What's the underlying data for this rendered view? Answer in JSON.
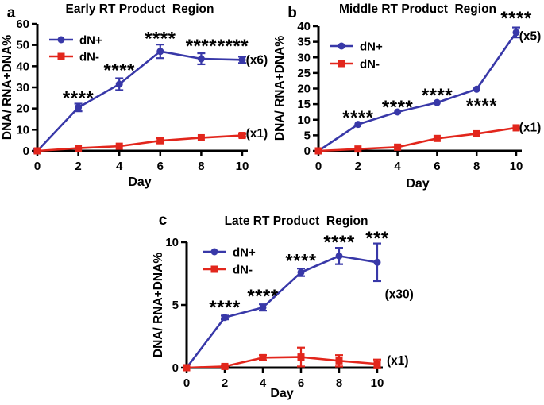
{
  "figure": {
    "background": "#ffffff",
    "colors": {
      "dn_plus": "#3838A8",
      "dn_minus": "#E2261C",
      "axis": "#000000",
      "text": "#000000"
    }
  },
  "chart_data": [
    {
      "panel_letter": "a",
      "type": "line",
      "title": "Early RT Product  Region",
      "xlabel": "Day",
      "ylabel": "DNA/ RNA+DNA%",
      "x": [
        0,
        2,
        4,
        6,
        8,
        10
      ],
      "xlim": [
        0,
        10
      ],
      "ylim": [
        0,
        60
      ],
      "xticks": [
        0,
        2,
        4,
        6,
        8,
        10
      ],
      "yticks": [
        0,
        10,
        20,
        30,
        40,
        50,
        60
      ],
      "grid": false,
      "legend_position": "top-left",
      "series": [
        {
          "name": "dN+",
          "marker": "circle",
          "color": "#3838A8",
          "values": [
            0,
            20.5,
            31.5,
            47,
            43.5,
            43
          ],
          "errors": [
            0.8,
            1.8,
            2.8,
            3.2,
            2.6,
            1.5
          ],
          "scale_label": "(x6)",
          "scale_label_pos": [
            10.18,
            41
          ]
        },
        {
          "name": "dN-",
          "marker": "square",
          "color": "#E2261C",
          "values": [
            0,
            1.3,
            2.2,
            4.8,
            6.2,
            7.3
          ],
          "errors": [
            0,
            0,
            0,
            1.2,
            0,
            0.7
          ],
          "scale_label": "(x1)",
          "scale_label_pos": [
            10.18,
            6.4
          ]
        }
      ],
      "annotations": [
        {
          "x": 2,
          "y": 22,
          "text": "****"
        },
        {
          "x": 4,
          "y": 35,
          "text": "****"
        },
        {
          "x": 6,
          "y": 50,
          "text": "****"
        },
        {
          "x": 8,
          "y": 46.5,
          "text": "****"
        },
        {
          "x": 9.55,
          "y": 46.5,
          "text": "****"
        }
      ]
    },
    {
      "panel_letter": "b",
      "type": "line",
      "title": "Middle RT Product  Region",
      "xlabel": "Day",
      "ylabel": "DNA/ RNA+DNA%",
      "x": [
        0,
        2,
        4,
        6,
        8,
        10
      ],
      "xlim": [
        0,
        10
      ],
      "ylim": [
        0,
        40
      ],
      "xticks": [
        0,
        2,
        4,
        6,
        8,
        10
      ],
      "yticks": [
        0,
        5,
        10,
        15,
        20,
        25,
        30,
        35,
        40
      ],
      "grid": false,
      "legend_position": "top-left",
      "series": [
        {
          "name": "dN+",
          "marker": "circle",
          "color": "#3838A8",
          "values": [
            0,
            8.5,
            12.5,
            15.5,
            19.8,
            38
          ],
          "errors": [
            0,
            0,
            0,
            0,
            0,
            1.6
          ],
          "scale_label": "(x5)",
          "scale_label_pos": [
            10.15,
            35.5
          ]
        },
        {
          "name": "dN-",
          "marker": "square",
          "color": "#E2261C",
          "values": [
            0,
            0.6,
            1.2,
            4,
            5.5,
            7.4
          ],
          "errors": [
            0,
            0,
            0,
            0,
            0,
            0
          ],
          "scale_label": "(x1)",
          "scale_label_pos": [
            10.15,
            6.2
          ]
        }
      ],
      "annotations": [
        {
          "x": 2,
          "y": 8.7,
          "text": "****"
        },
        {
          "x": 4,
          "y": 12,
          "text": "****"
        },
        {
          "x": 6,
          "y": 15.8,
          "text": "****"
        },
        {
          "x": 8.25,
          "y": 12.5,
          "text": "****"
        },
        {
          "x": 10,
          "y": 40.5,
          "text": "****"
        }
      ]
    },
    {
      "panel_letter": "c",
      "type": "line",
      "title": "Late RT Product  Region",
      "xlabel": "Day",
      "ylabel": "DNA/ RNA+DNA%",
      "x": [
        0,
        2,
        4,
        6,
        8,
        10
      ],
      "xlim": [
        0,
        10
      ],
      "ylim": [
        0,
        10
      ],
      "xticks": [
        0,
        2,
        4,
        6,
        8,
        10
      ],
      "yticks": [
        0,
        5,
        10
      ],
      "grid": false,
      "legend_position": "top-left",
      "series": [
        {
          "name": "dN+",
          "marker": "circle",
          "color": "#3838A8",
          "values": [
            0,
            4,
            4.8,
            7.6,
            8.9,
            8.4
          ],
          "errors": [
            0,
            0.15,
            0.25,
            0.3,
            0.65,
            1.5
          ],
          "scale_label": "(x30)",
          "scale_label_pos": [
            10.4,
            5.55
          ]
        },
        {
          "name": "dN-",
          "marker": "square",
          "color": "#E2261C",
          "values": [
            0,
            0.1,
            0.8,
            0.85,
            0.55,
            0.3
          ],
          "errors": [
            0,
            0.1,
            0.2,
            0.75,
            0.45,
            0.35
          ],
          "scale_label": "(x1)",
          "scale_label_pos": [
            10.5,
            0.25
          ]
        }
      ],
      "annotations": [
        {
          "x": 2,
          "y": 4.3,
          "text": "****"
        },
        {
          "x": 4,
          "y": 5.2,
          "text": "****"
        },
        {
          "x": 6,
          "y": 8.0,
          "text": "****"
        },
        {
          "x": 8,
          "y": 9.5,
          "text": "****"
        },
        {
          "x": 10,
          "y": 9.8,
          "text": "***"
        }
      ]
    }
  ]
}
